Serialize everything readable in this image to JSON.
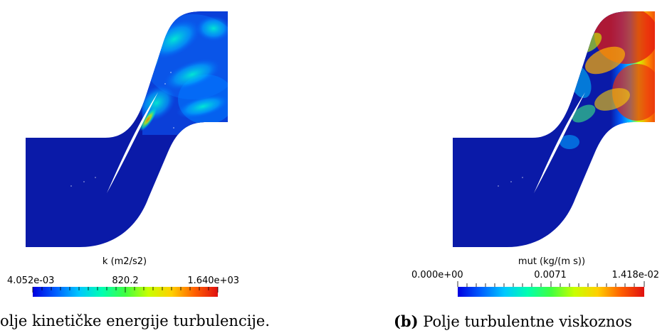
{
  "panels": [
    {
      "id": "a",
      "colorbar": {
        "title": "k (m2/s2)",
        "tick_min": "4.052e-03",
        "tick_mid": "820.2",
        "tick_max": "1.640e+03"
      },
      "caption": {
        "label": "",
        "text": "olje kinetičke energije turbulencije."
      }
    },
    {
      "id": "b",
      "colorbar": {
        "title": "mut (kg/(m s))",
        "tick_min": "0.000e+00",
        "tick_mid": "0.0071",
        "tick_max": "1.418e-02"
      },
      "caption": {
        "label": "(b)",
        "text": " Polje turbulentne viskoznos"
      }
    }
  ],
  "colormap": {
    "name": "rainbow-jet",
    "stops": [
      "#0000e0",
      "#0060ff",
      "#00c8ff",
      "#00ffb0",
      "#40ff40",
      "#c8ff00",
      "#ffd000",
      "#ff6000",
      "#e01010"
    ]
  },
  "colors": {
    "field_base": "#0a1aa8",
    "field_deep": "#081690"
  }
}
